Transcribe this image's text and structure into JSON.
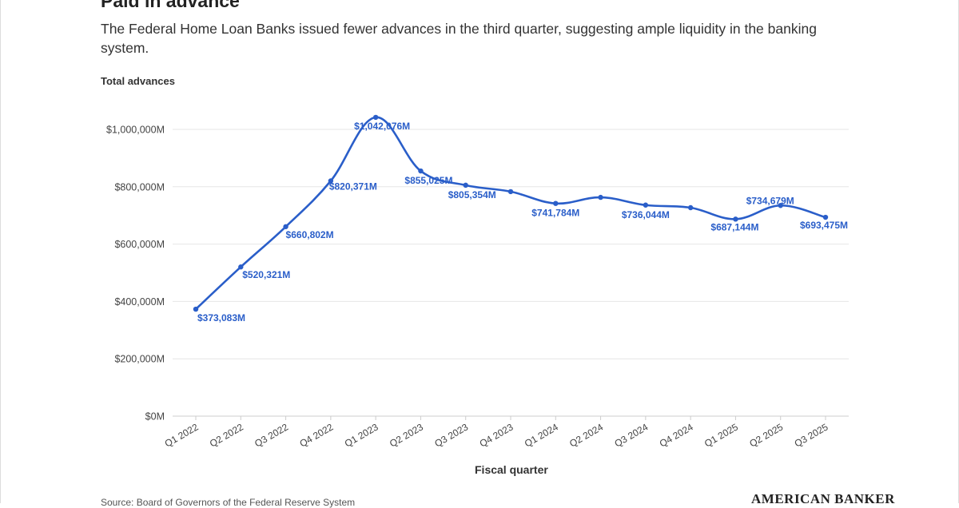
{
  "title": "Paid in advance",
  "subtitle": "The Federal Home Loan Banks issued fewer advances in the third quarter, suggesting ample liquidity in the banking system.",
  "source": "Source: Board of Governors of the Federal Reserve System",
  "brand": "AMERICAN BANKER",
  "chart_data": {
    "type": "line",
    "title": "",
    "ylabel": "Total advances",
    "xlabel": "Fiscal quarter",
    "ylim": [
      0,
      1000000
    ],
    "yticks": [
      0,
      200000,
      400000,
      600000,
      800000,
      1000000
    ],
    "ytick_labels": [
      "$0M",
      "$200,000M",
      "$400,000M",
      "$600,000M",
      "$800,000M",
      "$1,000,000M"
    ],
    "grid": true,
    "line_color": "#2a5ec9",
    "categories": [
      "Q1 2022",
      "Q2 2022",
      "Q3 2022",
      "Q4 2022",
      "Q1 2023",
      "Q2 2023",
      "Q3 2023",
      "Q4 2023",
      "Q1 2024",
      "Q2 2024",
      "Q3 2024",
      "Q4 2024",
      "Q1 2025",
      "Q2 2025",
      "Q3 2025"
    ],
    "series": [
      {
        "values": [
          373083,
          520321,
          660802,
          820371,
          1042076,
          855025,
          805354,
          783000,
          741784,
          763000,
          736044,
          727000,
          687144,
          734679,
          693475
        ],
        "labels": [
          "$373,083M",
          "$520,321M",
          "$660,802M",
          "$820,371M",
          "$1,042,076M",
          "$855,025M",
          "$805,354M",
          "",
          "$741,784M",
          "",
          "$736,044M",
          "",
          "$687,144M",
          "$734,679M",
          "$693,475M"
        ]
      }
    ]
  }
}
